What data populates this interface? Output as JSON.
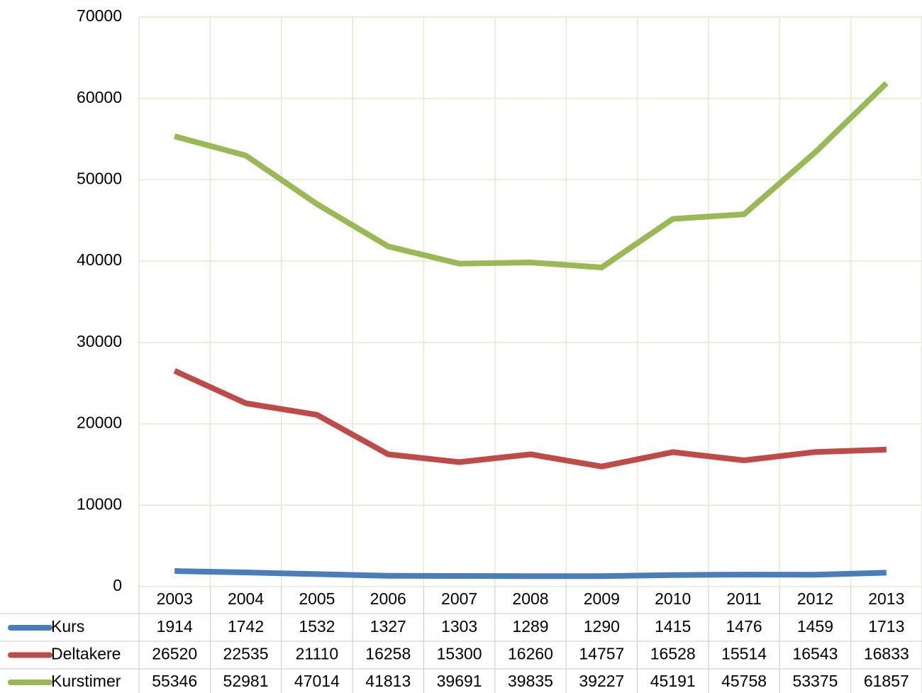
{
  "chart_data": {
    "type": "line",
    "categories": [
      "2003",
      "2004",
      "2005",
      "2006",
      "2007",
      "2008",
      "2009",
      "2010",
      "2011",
      "2012",
      "2013"
    ],
    "series": [
      {
        "name": "Kurs",
        "color": "#4a7ebb",
        "values": [
          1914,
          1742,
          1532,
          1327,
          1303,
          1289,
          1290,
          1415,
          1476,
          1459,
          1713
        ]
      },
      {
        "name": "Deltakere",
        "color": "#be4b48",
        "values": [
          26520,
          22535,
          21110,
          16258,
          15300,
          16260,
          14757,
          16528,
          15514,
          16543,
          16833
        ]
      },
      {
        "name": "Kurstimer",
        "color": "#98b954",
        "values": [
          55346,
          52981,
          47014,
          41813,
          39691,
          39835,
          39227,
          45191,
          45758,
          53375,
          61857
        ]
      }
    ],
    "ylim": [
      0,
      70000
    ],
    "yticks": [
      0,
      10000,
      20000,
      30000,
      40000,
      50000,
      60000,
      70000
    ],
    "grid": true
  }
}
